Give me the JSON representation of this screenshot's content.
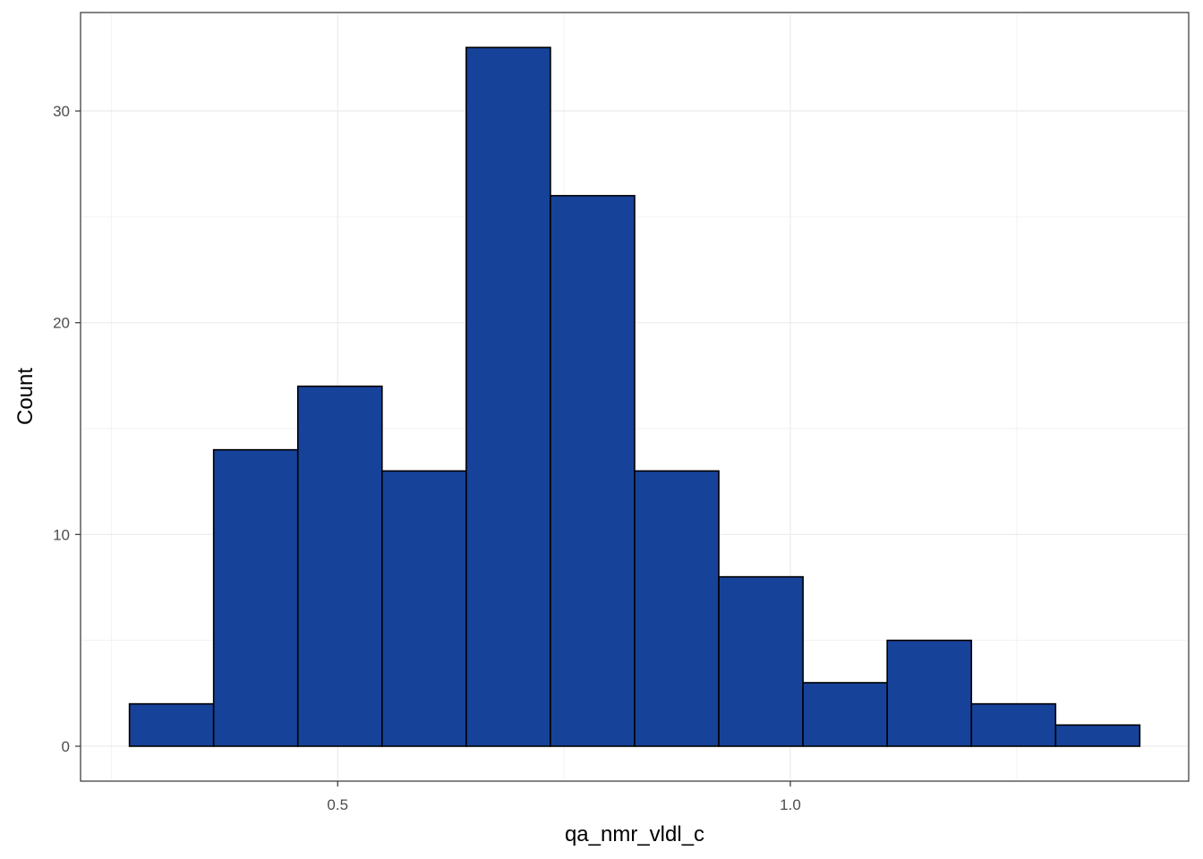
{
  "chart_data": {
    "type": "bar",
    "bins": [
      {
        "x0": 0.27,
        "x1": 0.363,
        "count": 2
      },
      {
        "x0": 0.363,
        "x1": 0.456,
        "count": 14
      },
      {
        "x0": 0.456,
        "x1": 0.549,
        "count": 17
      },
      {
        "x0": 0.549,
        "x1": 0.642,
        "count": 13
      },
      {
        "x0": 0.642,
        "x1": 0.735,
        "count": 33
      },
      {
        "x0": 0.735,
        "x1": 0.828,
        "count": 26
      },
      {
        "x0": 0.828,
        "x1": 0.921,
        "count": 13
      },
      {
        "x0": 0.921,
        "x1": 1.014,
        "count": 8
      },
      {
        "x0": 1.014,
        "x1": 1.107,
        "count": 3
      },
      {
        "x0": 1.107,
        "x1": 1.2,
        "count": 5
      },
      {
        "x0": 1.2,
        "x1": 1.293,
        "count": 2
      },
      {
        "x0": 1.293,
        "x1": 1.386,
        "count": 1
      }
    ],
    "xlabel": "qa_nmr_vldl_c",
    "ylabel": "Count",
    "xlim": [
      0.216,
      1.44
    ],
    "ylim": [
      -1.65,
      34.65
    ],
    "xticks": [
      {
        "value": 0.5,
        "label": "0.5"
      },
      {
        "value": 1.0,
        "label": "1.0"
      }
    ],
    "yticks": [
      {
        "value": 0,
        "label": "0"
      },
      {
        "value": 10,
        "label": "10"
      },
      {
        "value": 20,
        "label": "20"
      },
      {
        "value": 30,
        "label": "30"
      }
    ],
    "grid": true,
    "legend": "none",
    "colors": {
      "bar_fill": "#174299",
      "bar_outline": "#000000",
      "grid_major": "#ebebeb",
      "grid_minor": "#f3f3f3",
      "panel_border": "#333333"
    }
  }
}
